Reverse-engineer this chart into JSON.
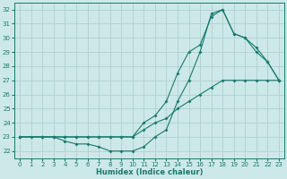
{
  "xlabel": "Humidex (Indice chaleur)",
  "xlim": [
    -0.5,
    23.5
  ],
  "ylim": [
    21.5,
    32.5
  ],
  "yticks": [
    22,
    23,
    24,
    25,
    26,
    27,
    28,
    29,
    30,
    31,
    32
  ],
  "xticks": [
    0,
    1,
    2,
    3,
    4,
    5,
    6,
    7,
    8,
    9,
    10,
    11,
    12,
    13,
    14,
    15,
    16,
    17,
    18,
    19,
    20,
    21,
    22,
    23
  ],
  "bg_color": "#cce8e8",
  "grid_color": "#b0d0d0",
  "line_color": "#1a7a6e",
  "line1_x": [
    0,
    1,
    2,
    3,
    4,
    5,
    6,
    7,
    8,
    9,
    10,
    11,
    12,
    13,
    14,
    15,
    16,
    17,
    18,
    19,
    20,
    21,
    22,
    23
  ],
  "line1_y": [
    23.0,
    23.0,
    23.0,
    23.0,
    23.0,
    23.0,
    23.0,
    23.0,
    23.0,
    23.0,
    23.0,
    23.5,
    24.0,
    24.3,
    25.0,
    25.5,
    26.0,
    26.5,
    27.0,
    27.0,
    27.0,
    27.0,
    27.0,
    27.0
  ],
  "line2_x": [
    0,
    2,
    3,
    4,
    5,
    6,
    7,
    8,
    9,
    10,
    11,
    12,
    13,
    14,
    15,
    16,
    17,
    18,
    19,
    20,
    21,
    22,
    23
  ],
  "line2_y": [
    23.0,
    23.0,
    23.0,
    22.7,
    22.5,
    22.5,
    22.3,
    22.0,
    22.0,
    22.0,
    22.3,
    23.0,
    23.5,
    25.5,
    27.0,
    29.0,
    31.7,
    32.0,
    30.3,
    30.0,
    29.0,
    28.3,
    27.0
  ],
  "line3_x": [
    0,
    2,
    3,
    4,
    5,
    6,
    7,
    8,
    9,
    10,
    11,
    12,
    13,
    14,
    15,
    16,
    17,
    18,
    19,
    20,
    21,
    22,
    23
  ],
  "line3_y": [
    23.0,
    23.0,
    23.0,
    23.0,
    23.0,
    23.0,
    23.0,
    23.0,
    23.0,
    23.0,
    24.0,
    24.5,
    25.5,
    27.5,
    29.0,
    29.5,
    31.5,
    32.0,
    30.3,
    30.0,
    29.3,
    28.3,
    27.0
  ]
}
